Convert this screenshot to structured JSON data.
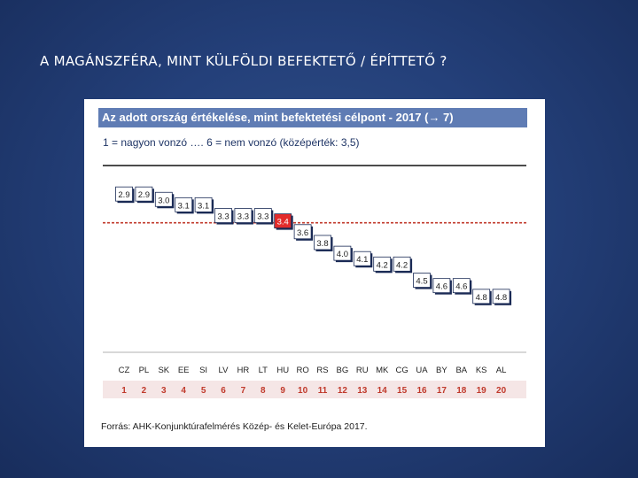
{
  "slide": {
    "title": "A MAGÁNSZFÉRA, MINT KÜLFÖLDI BEFEKTETŐ / ÉPÍTTETŐ ?"
  },
  "colors": {
    "background": "#24407a",
    "header_bar": "#5f7cb4",
    "highlight_fill": "#e32b2b",
    "average_line": "#c0392b",
    "rank_text": "#c0392b",
    "rank_row_bg": "#f5e6e6",
    "box_shadow": "#1a2a55"
  },
  "chart_data": {
    "type": "bar",
    "title": "Az adott ország értékelése, mint befektetési célpont - 2017  (→ 7)",
    "subtitle": "1 = nagyon vonzó …. 6 = nem vonzó (középérték: 3,5)",
    "average": 3.5,
    "ylim": [
      2.7,
      5.0
    ],
    "categories": [
      "CZ",
      "PL",
      "SK",
      "EE",
      "SI",
      "LV",
      "HR",
      "LT",
      "HU",
      "RO",
      "RS",
      "BG",
      "RU",
      "MK",
      "CG",
      "UA",
      "BY",
      "BA",
      "KS",
      "AL"
    ],
    "values": [
      2.9,
      2.9,
      3.0,
      3.1,
      3.1,
      3.3,
      3.3,
      3.3,
      3.4,
      3.6,
      3.8,
      4.0,
      4.1,
      4.2,
      4.2,
      4.5,
      4.6,
      4.6,
      4.8,
      4.8
    ],
    "ranks": [
      "1",
      "2",
      "3",
      "4",
      "5",
      "6",
      "7",
      "8",
      "9",
      "10",
      "11",
      "12",
      "13",
      "14",
      "15",
      "16",
      "17",
      "18",
      "19",
      "20"
    ],
    "highlight": "HU",
    "source": "Forrás: AHK-Konjunktúrafelmérés Közép- és Kelet-Európa 2017."
  }
}
